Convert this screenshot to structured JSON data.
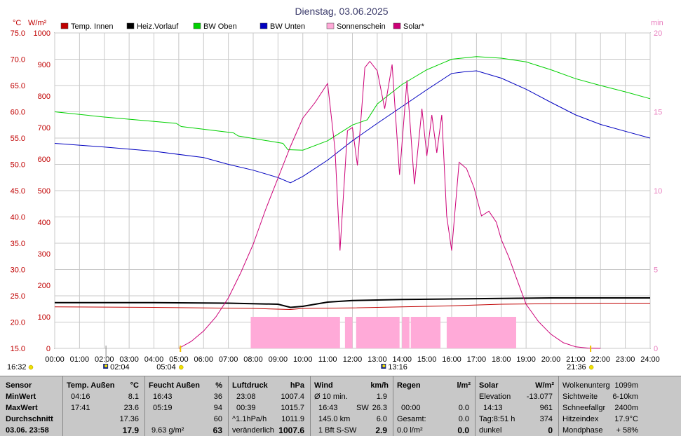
{
  "title": "Dienstag, 03.06.2025",
  "colors": {
    "temp_innen": "#c00000",
    "heiz_vorlauf": "#000000",
    "bw_oben": "#00d000",
    "bw_unten": "#0000c0",
    "sonnenschein": "#ffaad8",
    "solar": "#cc0077",
    "right_axis": "#e87fbf",
    "left_units": "#c00000"
  },
  "chart_data": {
    "type": "line",
    "legend": [
      "Temp. Innen",
      "Heiz.Vorlauf",
      "BW Oben",
      "BW Unten",
      "Sonnenschein",
      "Solar*"
    ],
    "left_unit_1": "°C",
    "left_unit_2": "W/m²",
    "right_unit": "min",
    "axis_temp": {
      "ticks": [
        "75.0",
        "70.0",
        "65.0",
        "60.0",
        "55.0",
        "50.0",
        "45.0",
        "40.0",
        "35.0",
        "30.0",
        "25.0",
        "20.0",
        "15.0"
      ],
      "range": [
        15,
        75
      ]
    },
    "axis_solar": {
      "ticks": [
        "1000",
        "900",
        "800",
        "700",
        "600",
        "500",
        "400",
        "300",
        "200",
        "100",
        "0"
      ],
      "range": [
        0,
        1000
      ]
    },
    "axis_min": {
      "ticks": [
        "20",
        "15",
        "10",
        "5",
        "0"
      ],
      "range": [
        0,
        20
      ]
    },
    "x_ticks": [
      "00:00",
      "01:00",
      "02:00",
      "03:00",
      "04:00",
      "05:00",
      "06:00",
      "07:00",
      "08:00",
      "09:00",
      "10:00",
      "11:00",
      "12:00",
      "13:00",
      "14:00",
      "15:00",
      "16:00",
      "17:00",
      "18:00",
      "19:00",
      "20:00",
      "21:00",
      "22:00",
      "23:00",
      "24:00"
    ],
    "x_range_hours": [
      0,
      24
    ],
    "markers": {
      "sunrise": "05:04",
      "sunset": "21:36",
      "moonrise": "02:04",
      "moonset": "13:16",
      "left": "16:32"
    },
    "series": [
      {
        "name": "Temp. Innen",
        "x": [
          0,
          4,
          8,
          9.5,
          10,
          12,
          14,
          16,
          18,
          20,
          22,
          24
        ],
        "y": [
          22.9,
          22.8,
          22.6,
          22.4,
          22.6,
          22.7,
          22.9,
          23.1,
          23.4,
          23.5,
          23.6,
          23.6
        ]
      },
      {
        "name": "Heiz.Vorlauf",
        "x": [
          0,
          4,
          7,
          9,
          9.5,
          10,
          11,
          12,
          14,
          16,
          18,
          20,
          22,
          24
        ],
        "y": [
          23.7,
          23.7,
          23.6,
          23.4,
          22.8,
          23.0,
          23.8,
          24.1,
          24.3,
          24.4,
          24.5,
          24.6,
          24.6,
          24.6
        ]
      },
      {
        "name": "BW Oben",
        "x": [
          0,
          2,
          4.9,
          5.1,
          7.2,
          7.4,
          9.2,
          9.4,
          10,
          11,
          12,
          12.6,
          13,
          14,
          15,
          16,
          17,
          18,
          19,
          20,
          21,
          22,
          23,
          24
        ],
        "y": [
          60,
          59,
          57.8,
          57.2,
          56,
          55.4,
          54,
          52.8,
          52.7,
          54.5,
          57.5,
          58.5,
          61.5,
          65.2,
          68,
          70,
          70.5,
          70.2,
          69.5,
          68,
          66.3,
          65,
          63.8,
          62.5
        ]
      },
      {
        "name": "BW Unten",
        "x": [
          0,
          2,
          4,
          6,
          7,
          8,
          9,
          9.5,
          10,
          11,
          12,
          13,
          14,
          15,
          16,
          16.5,
          17,
          18,
          19,
          20,
          21,
          22,
          23,
          24
        ],
        "y": [
          54,
          53.3,
          52.5,
          51.3,
          50,
          48.9,
          47.5,
          46.5,
          47.7,
          50.8,
          54.5,
          57.8,
          61,
          64.2,
          67.3,
          67.6,
          67.8,
          66.4,
          64.3,
          61.8,
          59.4,
          57.6,
          56.3,
          55
        ]
      },
      {
        "name": "Solar*",
        "x": [
          5.0,
          5.5,
          6,
          6.5,
          7,
          7.5,
          8,
          8.5,
          9,
          9.5,
          10,
          10.5,
          11,
          11.3,
          11.5,
          11.8,
          12.0,
          12.2,
          12.5,
          12.7,
          13.0,
          13.3,
          13.6,
          13.9,
          14.2,
          14.5,
          14.8,
          15.0,
          15.2,
          15.4,
          15.6,
          15.8,
          16.0,
          16.3,
          16.6,
          16.9,
          17.2,
          17.5,
          17.8,
          18.0,
          18.3,
          18.6,
          19.0,
          19.5,
          20.0,
          20.5,
          21.0,
          21.5,
          22.0
        ],
        "y": [
          0,
          22,
          55,
          100,
          160,
          240,
          330,
          440,
          540,
          640,
          730,
          780,
          840,
          630,
          310,
          690,
          700,
          580,
          890,
          910,
          880,
          760,
          900,
          550,
          850,
          520,
          760,
          610,
          740,
          620,
          740,
          420,
          310,
          590,
          570,
          510,
          420,
          435,
          400,
          345,
          290,
          225,
          140,
          85,
          45,
          18,
          5,
          1,
          0
        ]
      },
      {
        "name": "Sonnenschein",
        "intervals": [
          [
            7.9,
            11.5
          ],
          [
            11.7,
            12.0
          ],
          [
            12.15,
            13.9
          ],
          [
            14.0,
            14.3
          ],
          [
            14.35,
            15.55
          ],
          [
            15.8,
            18.6
          ]
        ],
        "level_min": 2
      }
    ]
  },
  "footer": {
    "sensor": {
      "header": "Sensor",
      "min": "MinWert",
      "max": "MaxWert",
      "avg": "Durchschnitt",
      "date": "03.06. 23:58"
    },
    "temp": {
      "header": "Temp. Außen",
      "unit": "°C",
      "min_time": "04:16",
      "min_val": "8.1",
      "max_time": "17:41",
      "max_val": "23.6",
      "avg": "17.36",
      "cur": "17.9"
    },
    "feucht": {
      "header": "Feucht Außen",
      "unit": "%",
      "min_time": "16:43",
      "min_val": "36",
      "max_time": "05:19",
      "max_val": "94",
      "avg": "60",
      "cur_left": "9.63 g/m²",
      "cur": "63"
    },
    "druck": {
      "header": "Luftdruck",
      "unit": "hPa",
      "min_time": "23:08",
      "min_val": "1007.4",
      "max_time": "00:39",
      "max_val": "1015.7",
      "avg_left": "^1.1hPa/h",
      "avg": "1011.9",
      "cur_left": "veränderlich",
      "cur": "1007.6"
    },
    "wind": {
      "header": "Wind",
      "unit": "km/h",
      "r1_left": "Ø 10 min.",
      "r1_val": "1.9",
      "r2_left": "16:43",
      "r2_mid": "SW",
      "r2_val": "26.3",
      "r3_left": "145.0 km",
      "r3_val": "6.0",
      "r4_left": "1 Bft S-SW",
      "r4_val": "2.9"
    },
    "regen": {
      "header": "Regen",
      "unit": "l/m²",
      "r2_left": "00:00",
      "r2_val": "0.0",
      "r3_left": "Gesamt:",
      "r3_val": "0.0",
      "r4_left": "0.0 l/m²",
      "r4_val": "0.0"
    },
    "solar": {
      "header": "Solar",
      "unit": "W/m²",
      "r1_left": "Elevation",
      "r1_val": "-13.077",
      "r2_left": "14:13",
      "r2_val": "961",
      "r3_left": "Tag:8:51 h",
      "r3_val": "374",
      "r4_left": "dunkel",
      "r4_val": "0"
    },
    "extra": {
      "r0_left": "Wolkenunterg",
      "r0_val": "1099m",
      "r1_left": "Sichtweite",
      "r1_val": "6-10km",
      "r2_left": "Schneefallgr",
      "r2_val": "2400m",
      "r3_left": "Hitzeindex",
      "r3_val": "17.9°C",
      "r4_left": "Mondphase",
      "r4_val": "+ 58%"
    }
  }
}
